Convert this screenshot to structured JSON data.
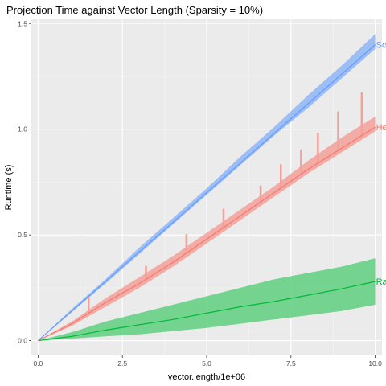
{
  "chart_data": {
    "type": "line",
    "title": "Projection Time against Vector Length (Sparsity = 10%)",
    "xlabel": "vector.length/1e+06",
    "ylabel": "Runtime (s)",
    "xlim": [
      -0.2,
      10.2
    ],
    "ylim": [
      -0.07,
      1.52
    ],
    "x_ticks": [
      0.0,
      2.5,
      5.0,
      7.5,
      10.0
    ],
    "x_tick_labels": [
      "0.0",
      "2.5",
      "5.0",
      "7.5",
      "10.0"
    ],
    "y_ticks": [
      0.0,
      0.5,
      1.0,
      1.5
    ],
    "y_tick_labels": [
      "0.0",
      "0.5",
      "1.0",
      "1.5"
    ],
    "grid": true,
    "legend": "inline labels at right end of each series",
    "colors": {
      "panel_background": "#ebebeb",
      "grid_major": "#ffffff",
      "grid_minor": "#f5f5f5"
    },
    "x": [
      0,
      1,
      2,
      3,
      4,
      5,
      6,
      7,
      8,
      9,
      10
    ],
    "series": [
      {
        "name": "Sort",
        "label": "Sor",
        "color": "#619cff",
        "band_color": "#8fb5f7",
        "mean": [
          0.0,
          0.14,
          0.28,
          0.42,
          0.56,
          0.7,
          0.84,
          0.98,
          1.12,
          1.26,
          1.4
        ],
        "lower": [
          0.0,
          0.135,
          0.27,
          0.41,
          0.55,
          0.69,
          0.83,
          0.97,
          1.1,
          1.24,
          1.38
        ],
        "upper": [
          0.0,
          0.15,
          0.29,
          0.44,
          0.58,
          0.72,
          0.87,
          1.01,
          1.16,
          1.3,
          1.45
        ]
      },
      {
        "name": "Heap",
        "label": "Hea",
        "color": "#f8766d",
        "band_color": "#f4a09a",
        "mean": [
          0.0,
          0.08,
          0.18,
          0.27,
          0.37,
          0.48,
          0.59,
          0.7,
          0.81,
          0.91,
          1.01
        ],
        "lower": [
          0.0,
          0.07,
          0.16,
          0.25,
          0.35,
          0.46,
          0.57,
          0.68,
          0.79,
          0.89,
          0.99
        ],
        "upper": [
          0.0,
          0.09,
          0.2,
          0.3,
          0.4,
          0.51,
          0.62,
          0.73,
          0.85,
          0.96,
          1.06
        ],
        "spikes": [
          [
            1.5,
            0.2
          ],
          [
            3.2,
            0.35
          ],
          [
            4.4,
            0.5
          ],
          [
            5.5,
            0.62
          ],
          [
            6.6,
            0.73
          ],
          [
            7.2,
            0.83
          ],
          [
            7.8,
            0.9
          ],
          [
            8.3,
            0.98
          ],
          [
            8.9,
            1.08
          ],
          [
            9.6,
            1.17
          ]
        ]
      },
      {
        "name": "Random",
        "label": "Ran",
        "color": "#00ba38",
        "band_color": "#5fcf7f",
        "mean": [
          0.0,
          0.02,
          0.05,
          0.075,
          0.1,
          0.13,
          0.16,
          0.185,
          0.215,
          0.245,
          0.28
        ],
        "lower": [
          0.0,
          0.01,
          0.02,
          0.03,
          0.045,
          0.06,
          0.08,
          0.1,
          0.12,
          0.14,
          0.17
        ],
        "upper": [
          0.0,
          0.04,
          0.09,
          0.13,
          0.17,
          0.21,
          0.25,
          0.29,
          0.32,
          0.35,
          0.39
        ]
      }
    ]
  }
}
